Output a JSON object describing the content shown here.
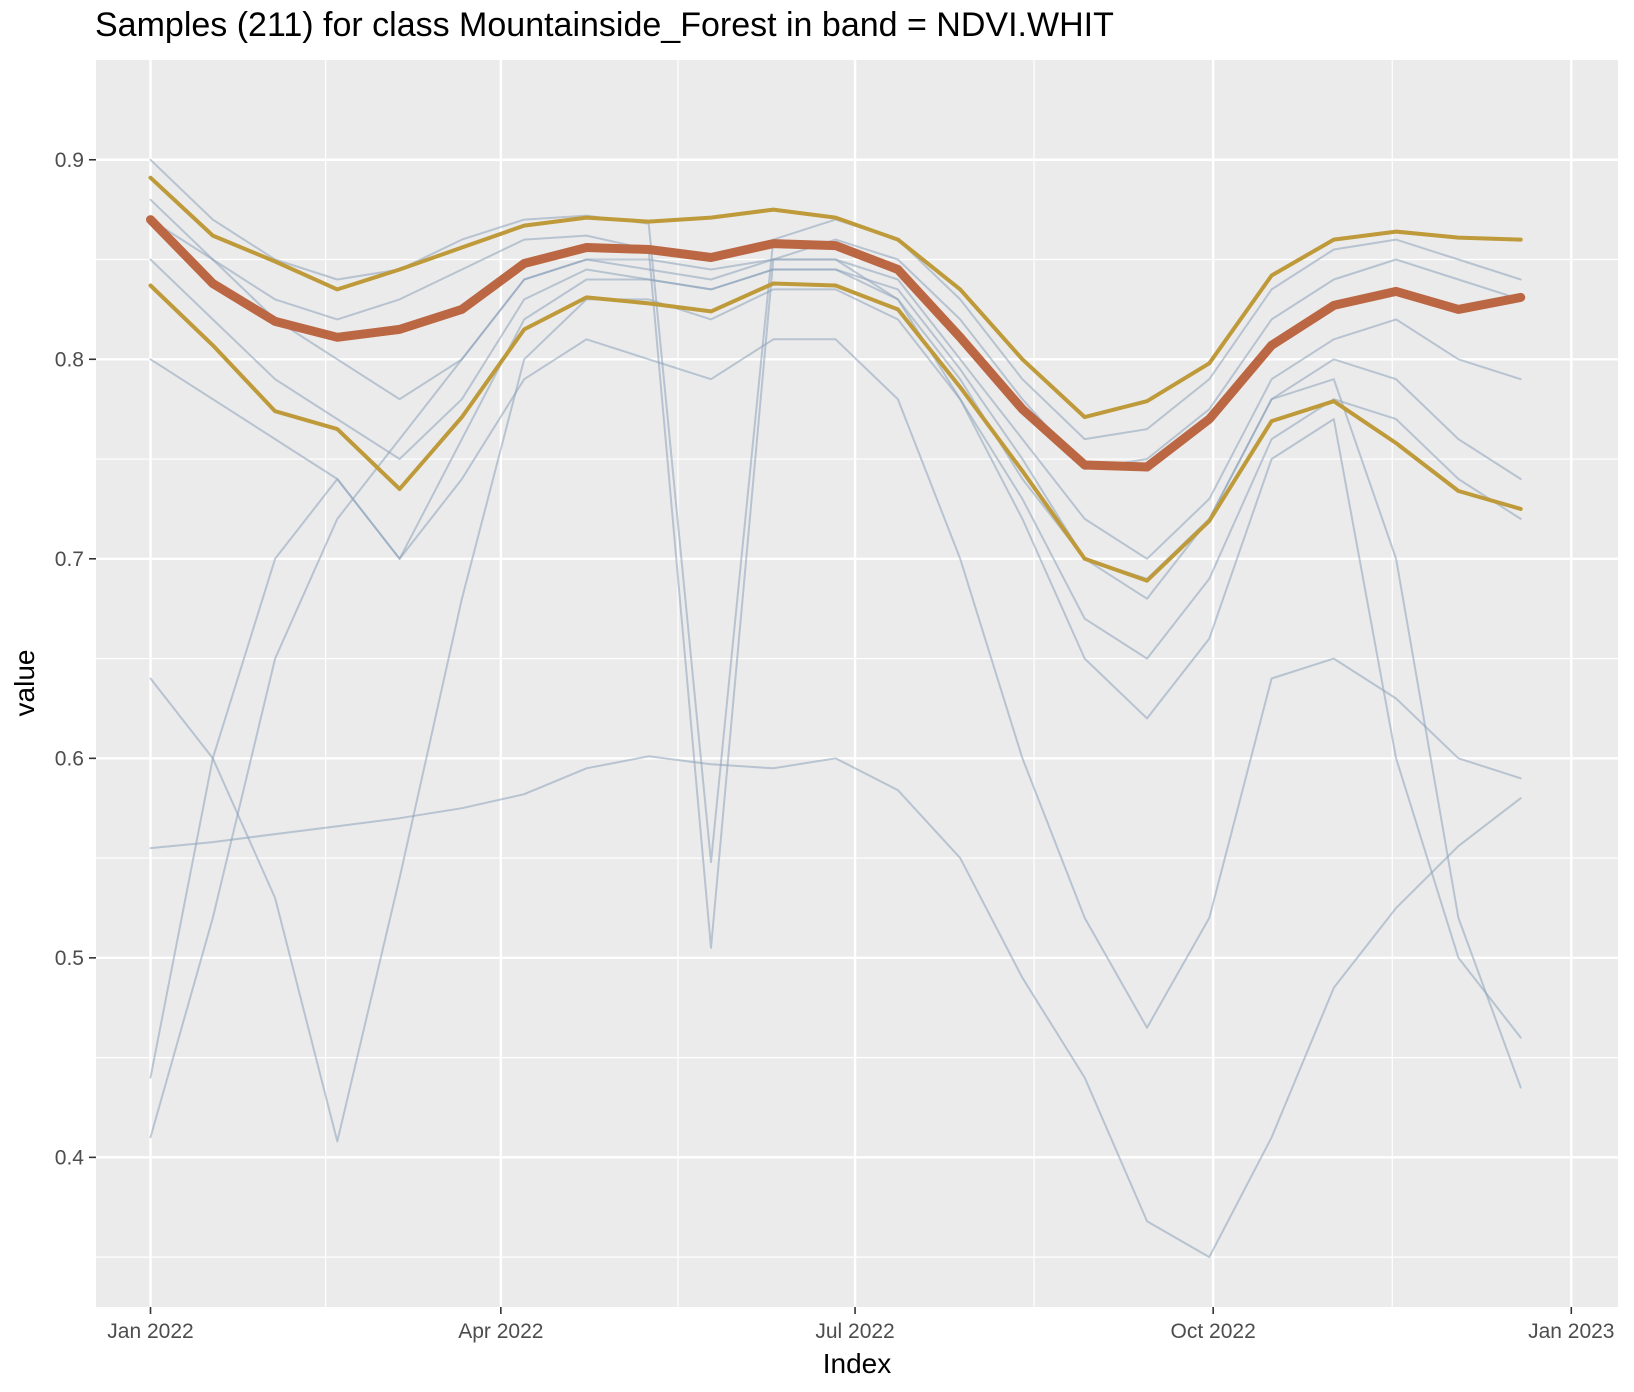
{
  "colors": {
    "panel_background": "#EBEBEB",
    "grid_major": "#FFFFFF",
    "sample_line": "#8CA3BA",
    "median_line": "#BC6743",
    "quantile_line": "#BE9A3A",
    "axis_text": "#4D4D4D"
  },
  "chart_data": {
    "type": "line",
    "title": "Samples (211) for class Mountainside_Forest in band = NDVI.WHIT",
    "xlabel": "Index",
    "ylabel": "value",
    "x_tick_labels": [
      "Jan 2022",
      "Apr 2022",
      "Jul 2022",
      "Oct 2022",
      "Jan 2023"
    ],
    "x_tick_positions": [
      0,
      90,
      181,
      273,
      365
    ],
    "x_range_days_from_2022_01_01": [
      -14,
      377
    ],
    "y_ticks": [
      0.4,
      0.5,
      0.6,
      0.7,
      0.8,
      0.9
    ],
    "ylim": [
      0.325,
      0.95
    ],
    "x_dates": [
      "2022-01-01",
      "2022-01-17",
      "2022-02-02",
      "2022-02-18",
      "2022-03-06",
      "2022-03-22",
      "2022-04-07",
      "2022-04-23",
      "2022-05-09",
      "2022-05-25",
      "2022-06-10",
      "2022-06-26",
      "2022-07-12",
      "2022-07-28",
      "2022-08-13",
      "2022-08-29",
      "2022-09-14",
      "2022-09-30",
      "2022-10-16",
      "2022-11-01",
      "2022-11-17",
      "2022-12-03",
      "2022-12-19"
    ],
    "x_days": [
      0,
      16,
      32,
      48,
      64,
      80,
      96,
      112,
      128,
      144,
      160,
      176,
      192,
      208,
      224,
      240,
      256,
      272,
      288,
      304,
      320,
      336,
      352
    ],
    "sample_count": 211,
    "series": [
      {
        "name": "upper quantile",
        "role": "quantile",
        "values": [
          0.891,
          0.862,
          0.849,
          0.835,
          0.845,
          0.856,
          0.867,
          0.871,
          0.869,
          0.871,
          0.875,
          0.871,
          0.86,
          0.835,
          0.8,
          0.771,
          0.779,
          0.798,
          0.842,
          0.86,
          0.864,
          0.861,
          0.86
        ]
      },
      {
        "name": "median",
        "role": "median",
        "values": [
          0.87,
          0.838,
          0.819,
          0.811,
          0.815,
          0.825,
          0.848,
          0.856,
          0.855,
          0.851,
          0.858,
          0.857,
          0.845,
          0.811,
          0.775,
          0.747,
          0.746,
          0.77,
          0.807,
          0.827,
          0.834,
          0.825,
          0.831
        ]
      },
      {
        "name": "lower quantile",
        "role": "quantile",
        "values": [
          0.837,
          0.807,
          0.774,
          0.765,
          0.735,
          0.771,
          0.815,
          0.831,
          0.828,
          0.824,
          0.838,
          0.837,
          0.825,
          0.786,
          0.744,
          0.7,
          0.689,
          0.719,
          0.769,
          0.779,
          0.758,
          0.734,
          0.725
        ]
      },
      {
        "name": "sample lowest",
        "role": "sample",
        "values": [
          0.555,
          0.558,
          0.562,
          0.566,
          0.57,
          0.575,
          0.582,
          0.595,
          0.601,
          0.597,
          0.595,
          0.6,
          0.584,
          0.55,
          0.49,
          0.44,
          0.368,
          0.35,
          0.41,
          0.485,
          0.525,
          0.556,
          0.58
        ]
      },
      {
        "name": "sample dip may",
        "role": "sample",
        "values": [
          0.9,
          0.87,
          0.85,
          0.84,
          0.845,
          0.86,
          0.87,
          0.872,
          0.868,
          0.548,
          0.86,
          0.87,
          0.86,
          0.83,
          0.79,
          0.76,
          0.765,
          0.79,
          0.835,
          0.855,
          0.86,
          0.85,
          0.84
        ]
      },
      {
        "name": "sample dip may b",
        "role": "sample",
        "values": [
          0.88,
          0.85,
          0.83,
          0.82,
          0.83,
          0.845,
          0.86,
          0.862,
          0.855,
          0.505,
          0.85,
          0.86,
          0.85,
          0.82,
          0.78,
          0.745,
          0.75,
          0.775,
          0.82,
          0.84,
          0.85,
          0.84,
          0.83
        ]
      },
      {
        "name": "sample low jan",
        "role": "sample",
        "values": [
          0.41,
          0.52,
          0.65,
          0.72,
          0.76,
          0.8,
          0.84,
          0.85,
          0.85,
          0.845,
          0.85,
          0.85,
          0.84,
          0.8,
          0.76,
          0.72,
          0.7,
          0.73,
          0.79,
          0.81,
          0.82,
          0.8,
          0.79
        ]
      },
      {
        "name": "sample low jan b",
        "role": "sample",
        "values": [
          0.44,
          0.6,
          0.7,
          0.74,
          0.7,
          0.76,
          0.82,
          0.84,
          0.84,
          0.835,
          0.845,
          0.845,
          0.835,
          0.795,
          0.75,
          0.7,
          0.68,
          0.72,
          0.78,
          0.8,
          0.79,
          0.76,
          0.74
        ]
      },
      {
        "name": "sample low feb",
        "role": "sample",
        "values": [
          0.64,
          0.6,
          0.53,
          0.408,
          0.54,
          0.68,
          0.8,
          0.83,
          0.83,
          0.82,
          0.835,
          0.835,
          0.82,
          0.78,
          0.73,
          0.67,
          0.65,
          0.69,
          0.76,
          0.78,
          0.77,
          0.74,
          0.72
        ]
      },
      {
        "name": "sample low sep",
        "role": "sample",
        "values": [
          0.8,
          0.78,
          0.76,
          0.74,
          0.7,
          0.74,
          0.79,
          0.81,
          0.8,
          0.79,
          0.81,
          0.81,
          0.78,
          0.7,
          0.6,
          0.52,
          0.465,
          0.52,
          0.64,
          0.65,
          0.63,
          0.6,
          0.59
        ]
      },
      {
        "name": "sample low dec",
        "role": "sample",
        "values": [
          0.87,
          0.85,
          0.82,
          0.8,
          0.78,
          0.8,
          0.84,
          0.85,
          0.845,
          0.84,
          0.85,
          0.85,
          0.83,
          0.79,
          0.74,
          0.7,
          0.69,
          0.72,
          0.78,
          0.79,
          0.7,
          0.52,
          0.435
        ]
      },
      {
        "name": "sample late dip",
        "role": "sample",
        "values": [
          0.85,
          0.82,
          0.79,
          0.77,
          0.75,
          0.78,
          0.83,
          0.845,
          0.84,
          0.835,
          0.845,
          0.845,
          0.83,
          0.78,
          0.72,
          0.65,
          0.62,
          0.66,
          0.75,
          0.77,
          0.6,
          0.5,
          0.46
        ]
      }
    ]
  }
}
